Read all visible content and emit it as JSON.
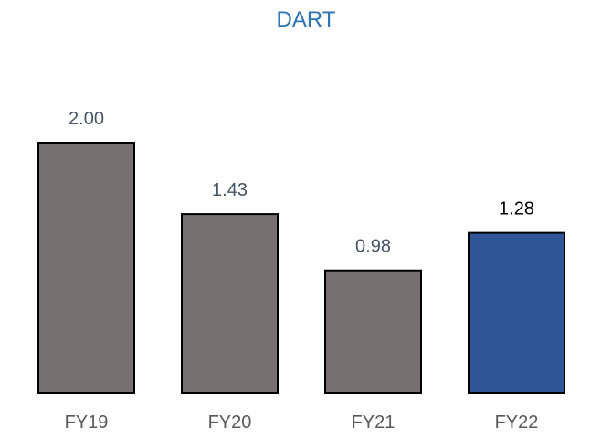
{
  "chart_data": {
    "type": "bar",
    "title": "DART",
    "categories": [
      "FY19",
      "FY20",
      "FY21",
      "FY22"
    ],
    "values": [
      2.0,
      1.43,
      0.98,
      1.28
    ],
    "value_labels": [
      "2.00",
      "1.43",
      "0.98",
      "1.28"
    ],
    "xlabel": "",
    "ylabel": "",
    "ylim": [
      0,
      2.0
    ],
    "grid": false,
    "legend": "none",
    "colors": {
      "bar_default": "#767170",
      "bar_highlight": "#2F5597",
      "bar_outline": "#000000",
      "title": "#2E75B6",
      "label_default": "#44546A",
      "label_highlight": "#000000",
      "tick": "#595959"
    },
    "highlight_index": 3
  }
}
